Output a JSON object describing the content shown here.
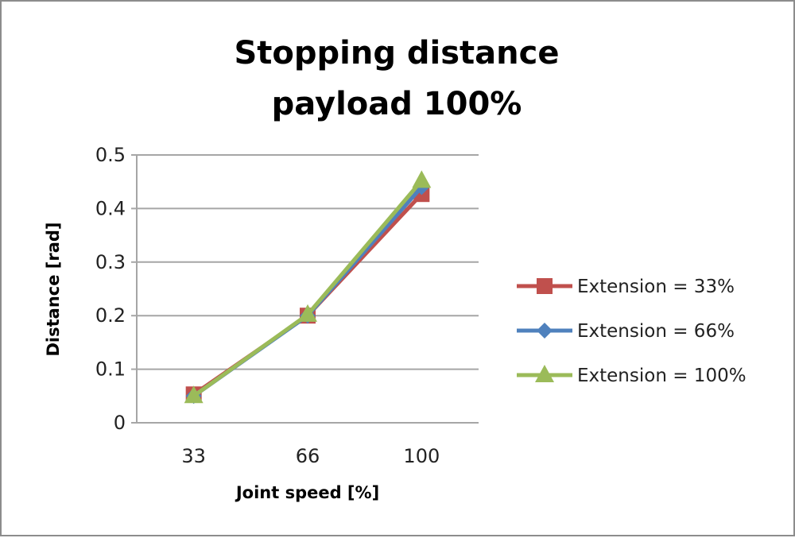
{
  "chart_data": {
    "type": "line",
    "title": "Stopping distance",
    "subtitle": "payload 100%",
    "xlabel": "Joint speed [%]",
    "ylabel": "Distance [rad]",
    "categories": [
      "33",
      "66",
      "100"
    ],
    "ylim": [
      0,
      0.5
    ],
    "yticks": [
      "0",
      "0.1",
      "0.2",
      "0.3",
      "0.4",
      "0.5"
    ],
    "grid": true,
    "legend_position": "right",
    "series": [
      {
        "name": "Extension = 33%",
        "values": [
          0.053,
          0.2,
          0.427
        ],
        "color": "#c0504d",
        "marker": "square"
      },
      {
        "name": "Extension = 66%",
        "values": [
          0.05,
          0.2,
          0.44
        ],
        "color": "#4f81bd",
        "marker": "diamond"
      },
      {
        "name": "Extension = 100%",
        "values": [
          0.05,
          0.202,
          0.452
        ],
        "color": "#9bbb59",
        "marker": "triangle"
      }
    ]
  }
}
